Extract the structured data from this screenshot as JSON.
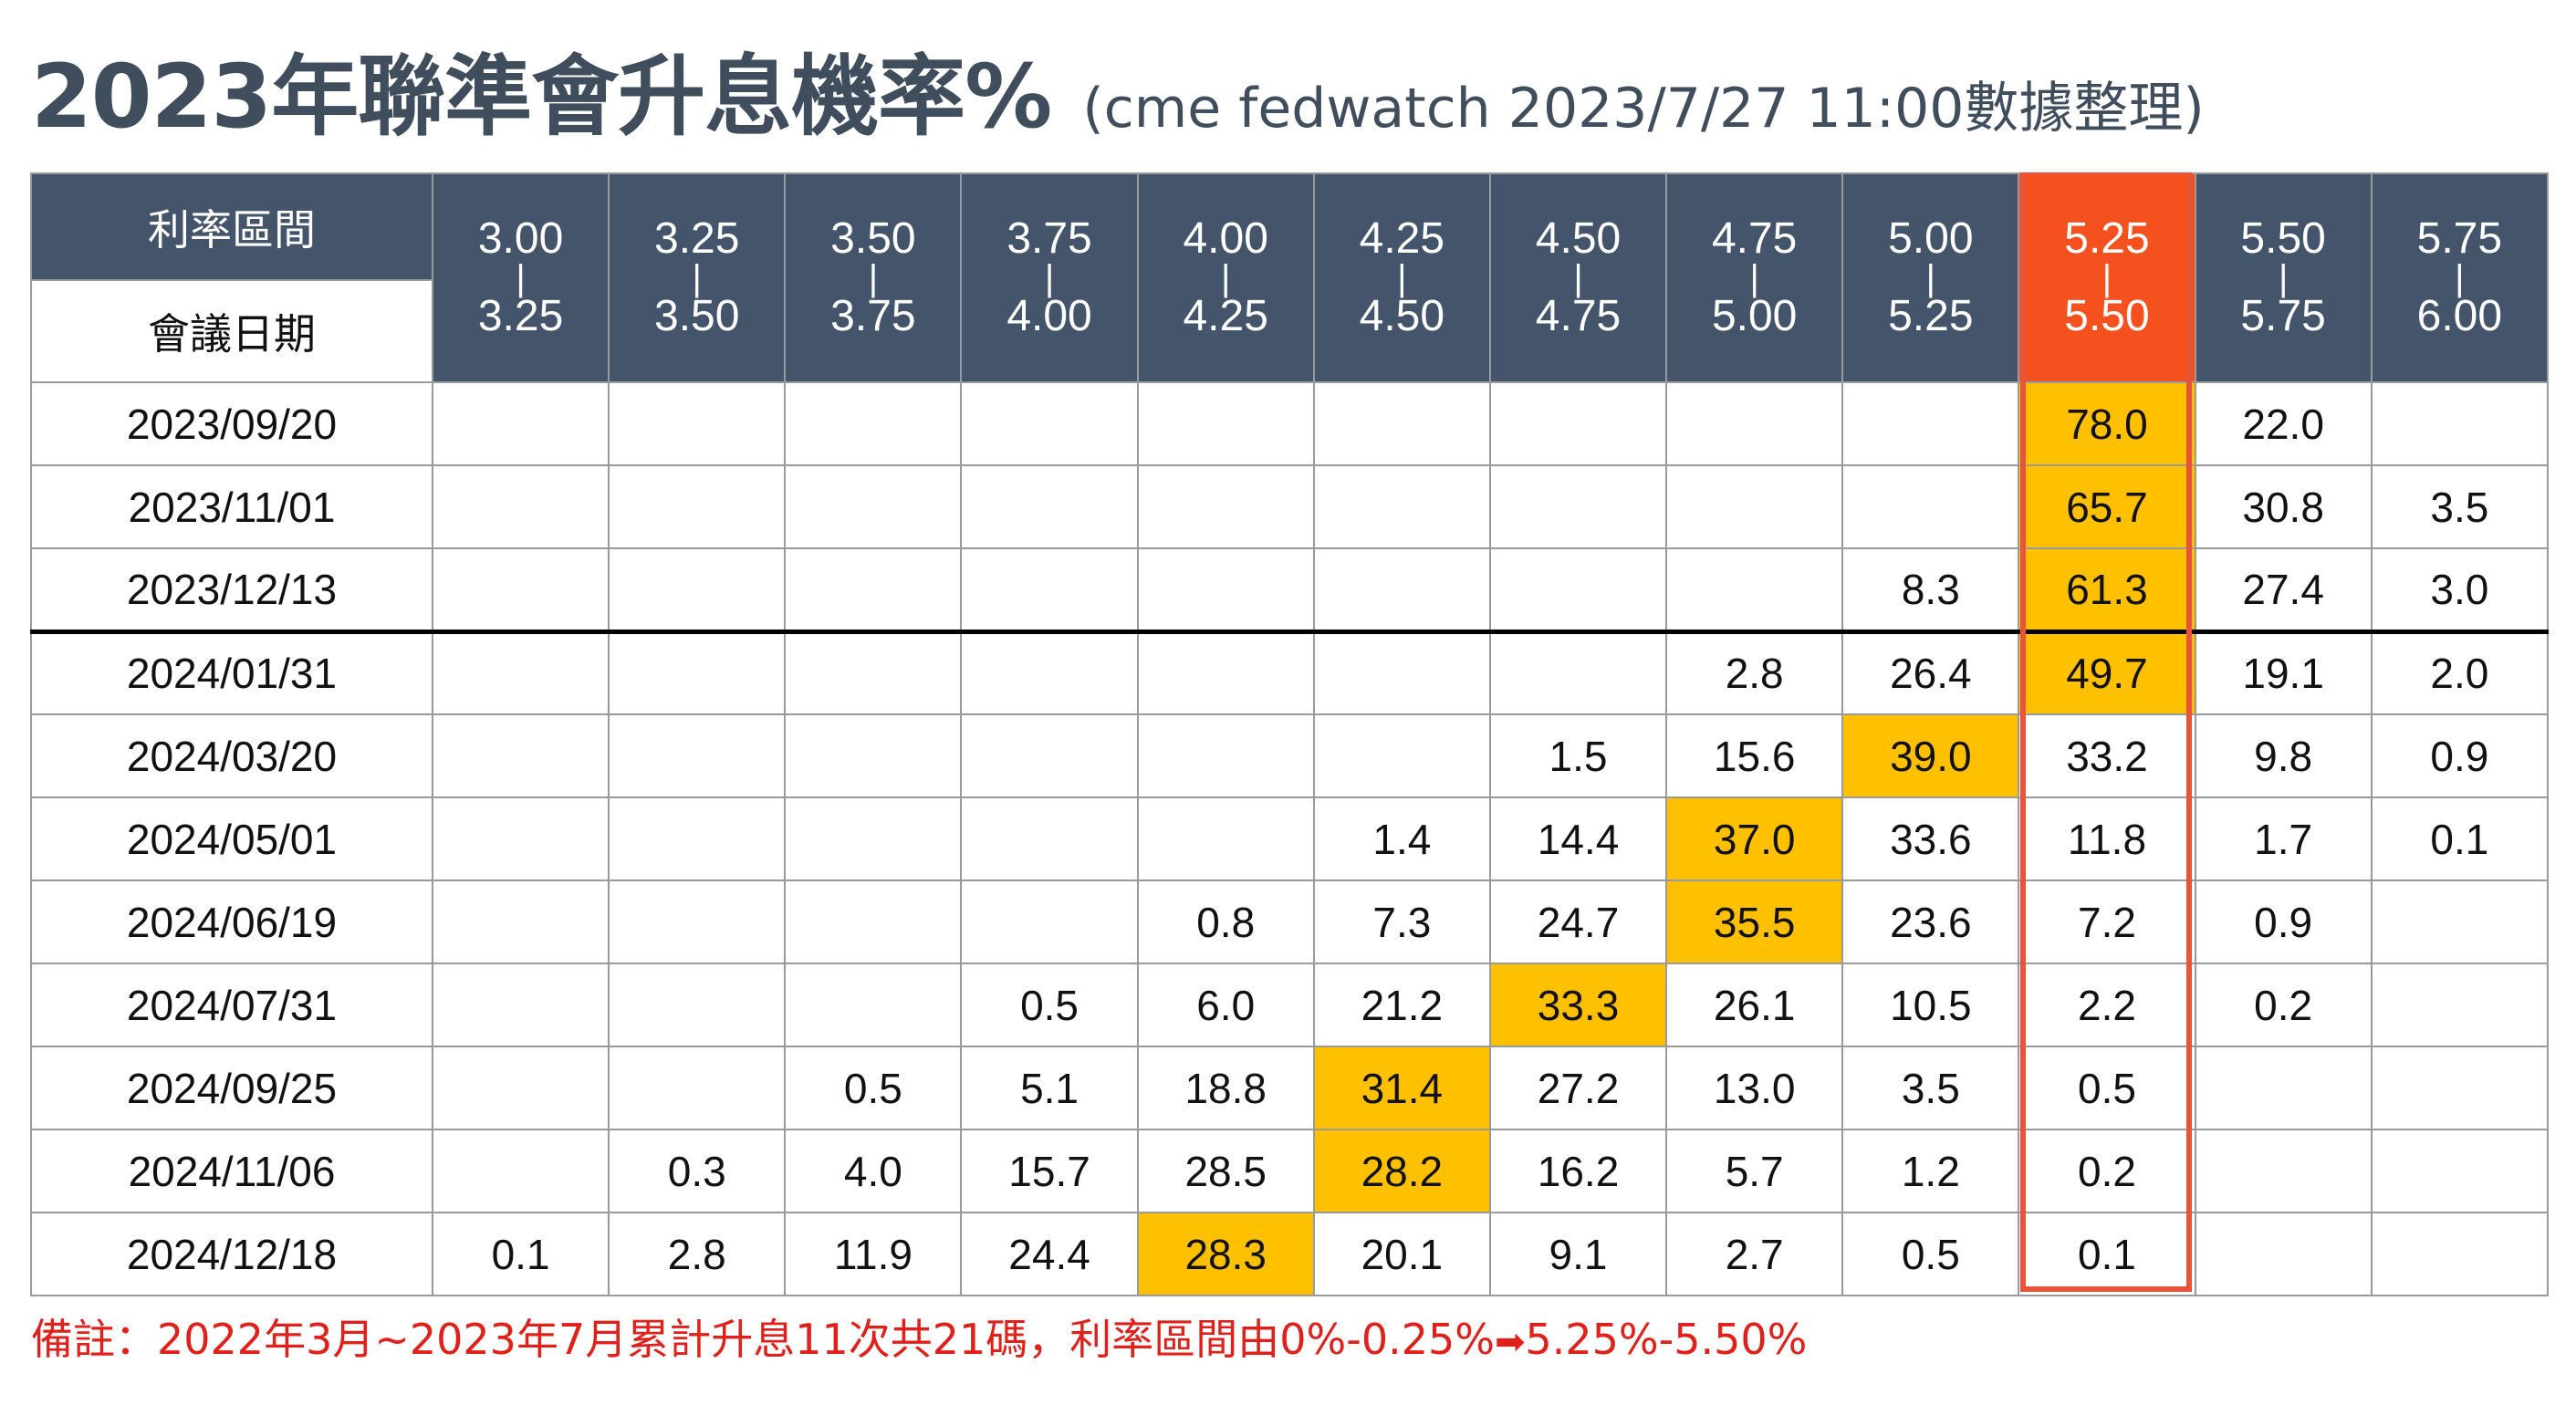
{
  "title": {
    "main": "2023年聯準會升息機率%",
    "sub": "(cme fedwatch 2023/7/27 11:00數據整理)"
  },
  "table": {
    "corner_top": "利率區間",
    "corner_bottom": "會議日期",
    "ranges": [
      {
        "low": "3.00",
        "sep": "|",
        "high": "3.25"
      },
      {
        "low": "3.25",
        "sep": "|",
        "high": "3.50"
      },
      {
        "low": "3.50",
        "sep": "|",
        "high": "3.75"
      },
      {
        "low": "3.75",
        "sep": "|",
        "high": "4.00"
      },
      {
        "low": "4.00",
        "sep": "|",
        "high": "4.25"
      },
      {
        "low": "4.25",
        "sep": "|",
        "high": "4.50"
      },
      {
        "low": "4.50",
        "sep": "|",
        "high": "4.75"
      },
      {
        "low": "4.75",
        "sep": "|",
        "high": "5.00"
      },
      {
        "low": "5.00",
        "sep": "|",
        "high": "5.25"
      },
      {
        "low": "5.25",
        "sep": "|",
        "high": "5.50"
      },
      {
        "low": "5.50",
        "sep": "|",
        "high": "5.75"
      },
      {
        "low": "5.75",
        "sep": "|",
        "high": "6.00"
      }
    ],
    "rows": [
      {
        "date": "2023/09/20",
        "cells": [
          "",
          "",
          "",
          "",
          "",
          "",
          "",
          "",
          "",
          "78.0",
          "22.0",
          ""
        ]
      },
      {
        "date": "2023/11/01",
        "cells": [
          "",
          "",
          "",
          "",
          "",
          "",
          "",
          "",
          "",
          "65.7",
          "30.8",
          "3.5"
        ]
      },
      {
        "date": "2023/12/13",
        "cells": [
          "",
          "",
          "",
          "",
          "",
          "",
          "",
          "",
          "8.3",
          "61.3",
          "27.4",
          "3.0"
        ]
      },
      {
        "date": "2024/01/31",
        "cells": [
          "",
          "",
          "",
          "",
          "",
          "",
          "",
          "2.8",
          "26.4",
          "49.7",
          "19.1",
          "2.0"
        ]
      },
      {
        "date": "2024/03/20",
        "cells": [
          "",
          "",
          "",
          "",
          "",
          "",
          "1.5",
          "15.6",
          "39.0",
          "33.2",
          "9.8",
          "0.9"
        ]
      },
      {
        "date": "2024/05/01",
        "cells": [
          "",
          "",
          "",
          "",
          "",
          "1.4",
          "14.4",
          "37.0",
          "33.6",
          "11.8",
          "1.7",
          "0.1"
        ]
      },
      {
        "date": "2024/06/19",
        "cells": [
          "",
          "",
          "",
          "",
          "0.8",
          "7.3",
          "24.7",
          "35.5",
          "23.6",
          "7.2",
          "0.9",
          ""
        ]
      },
      {
        "date": "2024/07/31",
        "cells": [
          "",
          "",
          "",
          "0.5",
          "6.0",
          "21.2",
          "33.3",
          "26.1",
          "10.5",
          "2.2",
          "0.2",
          ""
        ]
      },
      {
        "date": "2024/09/25",
        "cells": [
          "",
          "",
          "0.5",
          "5.1",
          "18.8",
          "31.4",
          "27.2",
          "13.0",
          "3.5",
          "0.5",
          "",
          ""
        ]
      },
      {
        "date": "2024/11/06",
        "cells": [
          "",
          "0.3",
          "4.0",
          "15.7",
          "28.5",
          "28.2",
          "16.2",
          "5.7",
          "1.2",
          "0.2",
          "",
          ""
        ]
      },
      {
        "date": "2024/12/18",
        "cells": [
          "0.1",
          "2.8",
          "11.9",
          "24.4",
          "28.3",
          "20.1",
          "9.1",
          "2.7",
          "0.5",
          "0.1",
          "",
          ""
        ]
      }
    ],
    "highlight_column_per_row": [
      9,
      9,
      9,
      9,
      8,
      7,
      7,
      6,
      5,
      5,
      4
    ],
    "current_range_column": 9,
    "year_separator_after_row": 2,
    "colors": {
      "header_bg": "#44546a",
      "current_header_bg": "#f4511e",
      "current_frame": "#e8543a",
      "highlight": "#ffc000",
      "note_text": "#e0201b"
    }
  },
  "note": {
    "prefix": "備註：2022年3月~2023年7月累計升息11次共21碼，利率區間由0%-0.25%",
    "arrow_icon": "right-arrow-icon",
    "suffix": "5.25%-5.50%"
  }
}
